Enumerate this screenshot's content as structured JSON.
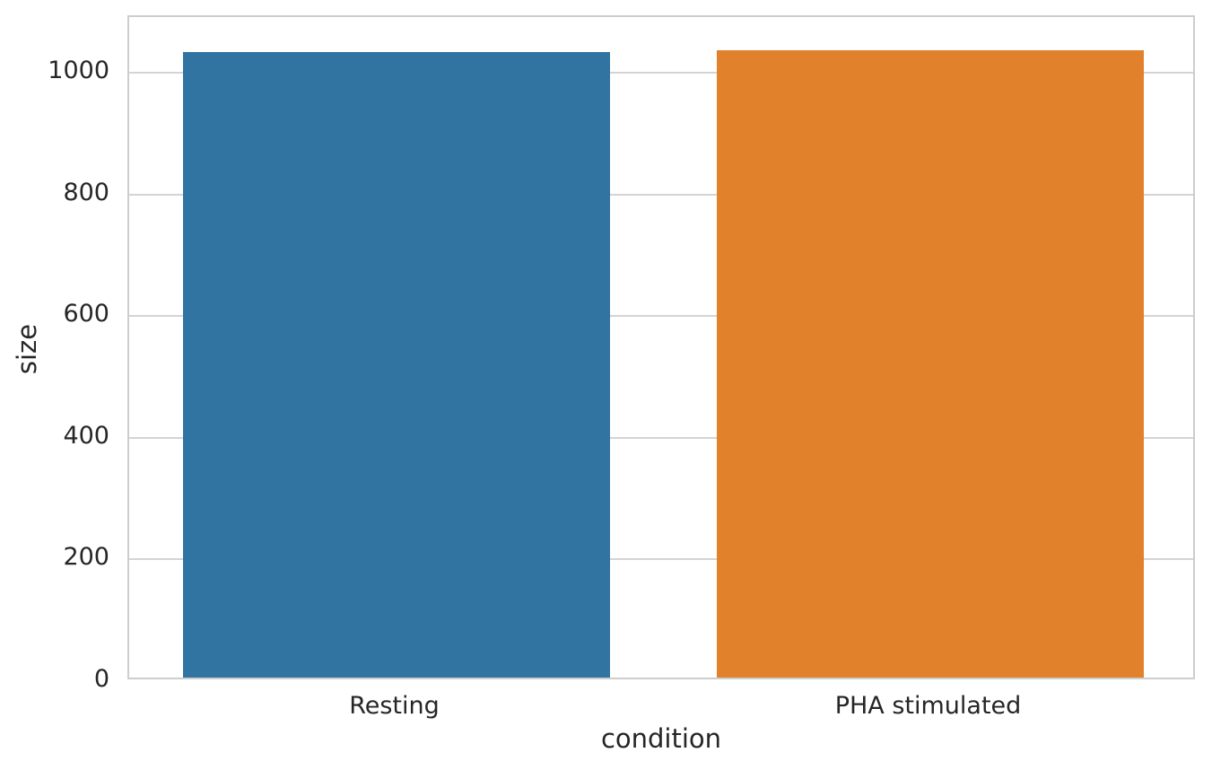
{
  "chart_data": {
    "type": "bar",
    "title": "",
    "xlabel": "condition",
    "ylabel": "size",
    "categories": [
      "Resting",
      "PHA stimulated"
    ],
    "values": [
      1034,
      1037
    ],
    "series_colors": [
      "#3274a1",
      "#e1812c"
    ],
    "yticks": [
      0,
      200,
      400,
      600,
      800,
      1000
    ],
    "ylim": [
      0,
      1092
    ],
    "bar_width_fraction": 0.8,
    "grid": "horizontal",
    "legend": "none",
    "background_color": "#ffffff",
    "grid_color": "#d4d4d4",
    "spine_color": "#cdcdcd",
    "text_color": "#262626"
  }
}
